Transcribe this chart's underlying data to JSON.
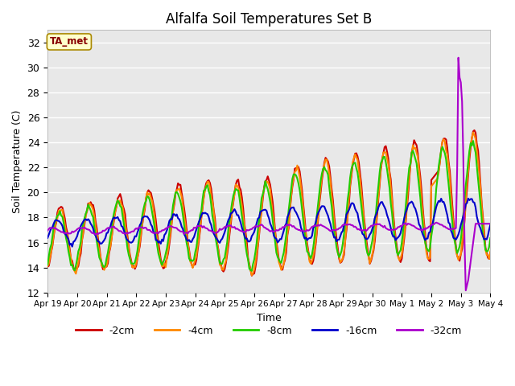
{
  "title": "Alfalfa Soil Temperatures Set B",
  "xlabel": "Time",
  "ylabel": "Soil Temperature (C)",
  "ylim": [
    12,
    33
  ],
  "yticks": [
    12,
    14,
    16,
    18,
    20,
    22,
    24,
    26,
    28,
    30,
    32
  ],
  "background_color": "#e8e8e8",
  "grid_color": "white",
  "series_colors": {
    "-2cm": "#cc0000",
    "-4cm": "#ff8800",
    "-8cm": "#22cc00",
    "-16cm": "#0000cc",
    "-32cm": "#aa00cc"
  },
  "legend_labels": [
    "-2cm",
    "-4cm",
    "-8cm",
    "-16cm",
    "-32cm"
  ],
  "annotation_text": "TA_met",
  "annotation_color": "#880000",
  "annotation_bg": "#ffffcc",
  "annotation_border": "#aa8800",
  "line_width": 1.5
}
